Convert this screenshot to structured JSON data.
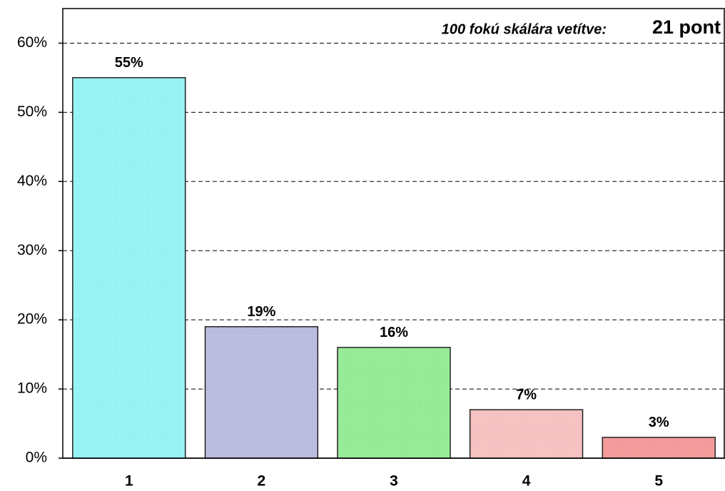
{
  "chart_data": {
    "type": "bar",
    "annotation": [
      "100 fokú skálára vetítve:",
      "21 pont"
    ],
    "categories": [
      "1",
      "2",
      "3",
      "4",
      "5"
    ],
    "values": [
      55,
      19,
      16,
      7,
      3
    ],
    "value_labels": [
      "55%",
      "19%",
      "16%",
      "7%",
      "3%"
    ],
    "colors": [
      "#77f4f4",
      "#a8a8d8",
      "#77e877",
      "#f8b0b0",
      "#f47c7c"
    ],
    "ylim": [
      0,
      65
    ],
    "yticks": [
      {
        "value": 0,
        "label": "0%"
      },
      {
        "value": 10,
        "label": "10%"
      },
      {
        "value": 20,
        "label": "20%"
      },
      {
        "value": 30,
        "label": "30%"
      },
      {
        "value": 40,
        "label": "40%"
      },
      {
        "value": 50,
        "label": "50%"
      },
      {
        "value": 60,
        "label": "60%"
      }
    ],
    "grid": true
  }
}
